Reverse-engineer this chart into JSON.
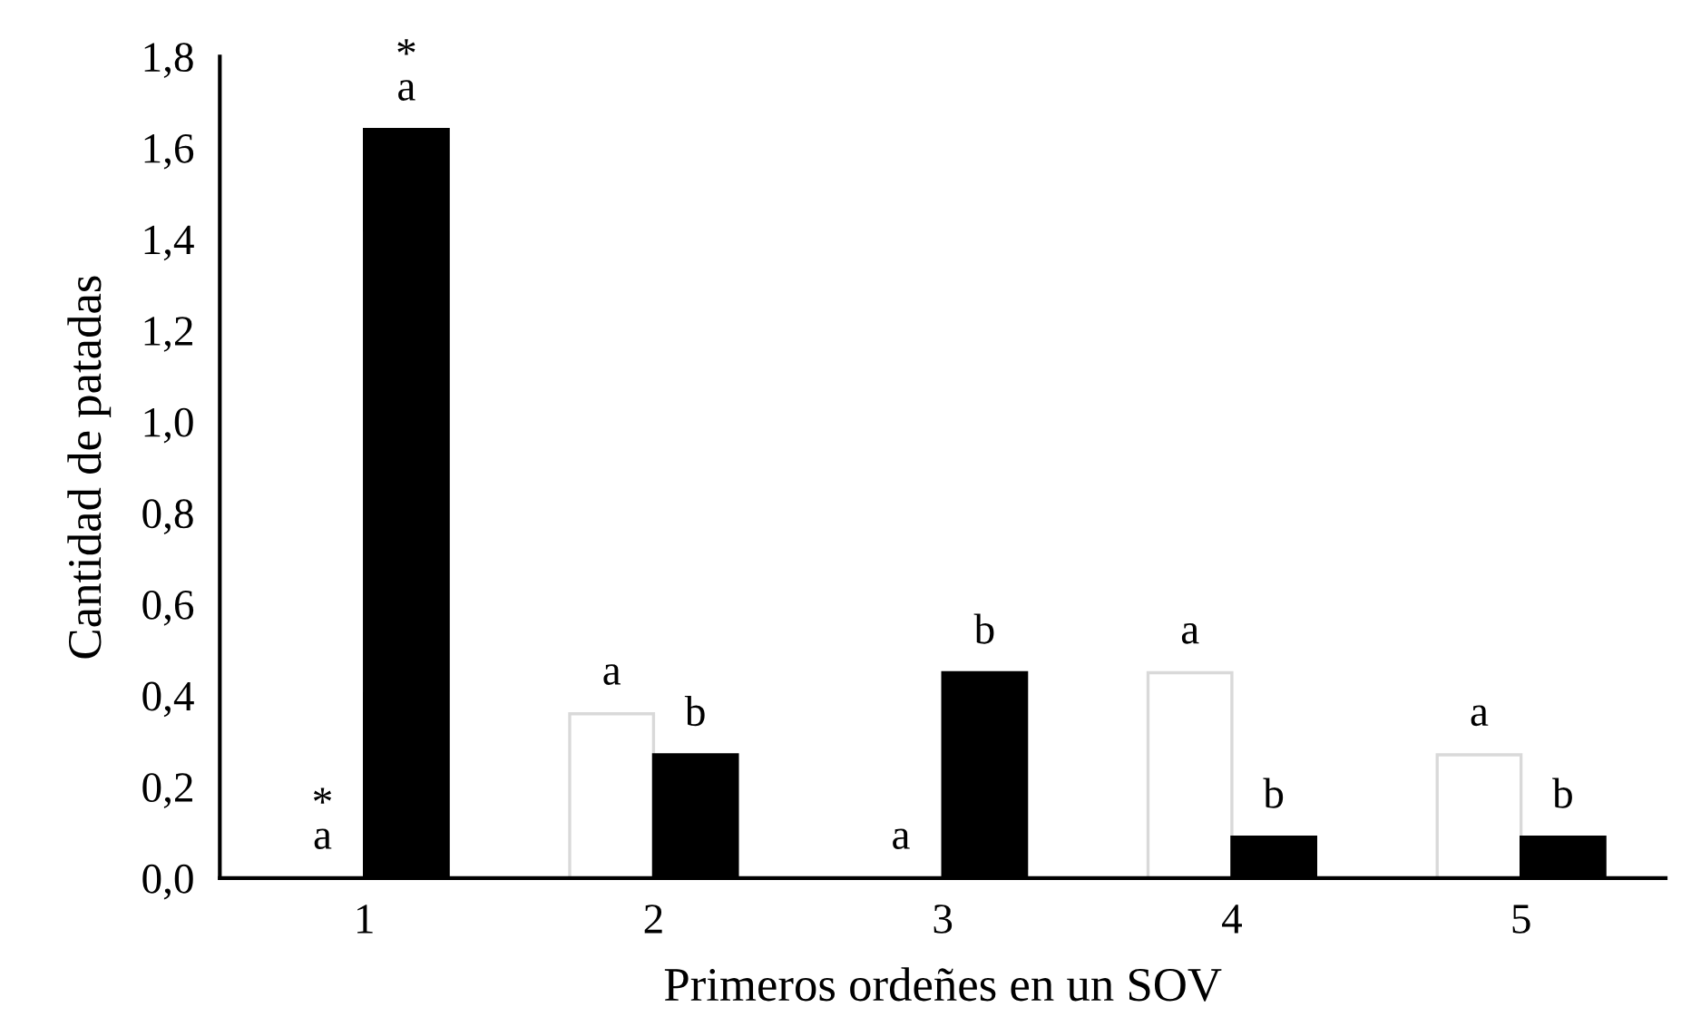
{
  "chart_data": {
    "type": "bar",
    "xlabel": "Primeros ordeñes en un SOV",
    "ylabel": "Cantidad de patadas",
    "categories": [
      "1",
      "2",
      "3",
      "4",
      "5"
    ],
    "series": [
      {
        "color": "#d9d9d9",
        "values": [
          0,
          0.36,
          0,
          0.45,
          0.27
        ]
      },
      {
        "color": "#000000",
        "values": [
          1.64,
          0.27,
          0.45,
          0.09,
          0.09
        ]
      }
    ],
    "ylim": [
      0,
      1.8
    ],
    "yticks": [
      {
        "value": 0,
        "label": "0,0"
      },
      {
        "value": 0.2,
        "label": "0,2"
      },
      {
        "value": 0.4,
        "label": "0,4"
      },
      {
        "value": 0.6,
        "label": "0,6"
      },
      {
        "value": 0.8,
        "label": "0,8"
      },
      {
        "value": 1.0,
        "label": "1,0"
      },
      {
        "value": 1.2,
        "label": "1,2"
      },
      {
        "value": 1.4,
        "label": "1,4"
      },
      {
        "value": 1.6,
        "label": "1,6"
      },
      {
        "value": 1.8,
        "label": "1,8"
      }
    ],
    "grid": false,
    "annotations": [
      {
        "text": "*\na",
        "x": "1",
        "y": 0
      },
      {
        "text": "*\na",
        "x": "1",
        "y": 1.64
      },
      {
        "text": "a",
        "x": "2",
        "y": 0.36
      },
      {
        "text": "b",
        "x": "2",
        "y": 0.27
      },
      {
        "text": "a",
        "x": "3",
        "y": 0
      },
      {
        "text": "b",
        "x": "3",
        "y": 0.45
      },
      {
        "text": "a",
        "x": "4",
        "y": 0.45
      },
      {
        "text": "b",
        "x": "4",
        "y": 0.09
      },
      {
        "text": "a",
        "x": "5",
        "y": 0.27
      },
      {
        "text": "b",
        "x": "5",
        "y": 0.09
      }
    ]
  }
}
